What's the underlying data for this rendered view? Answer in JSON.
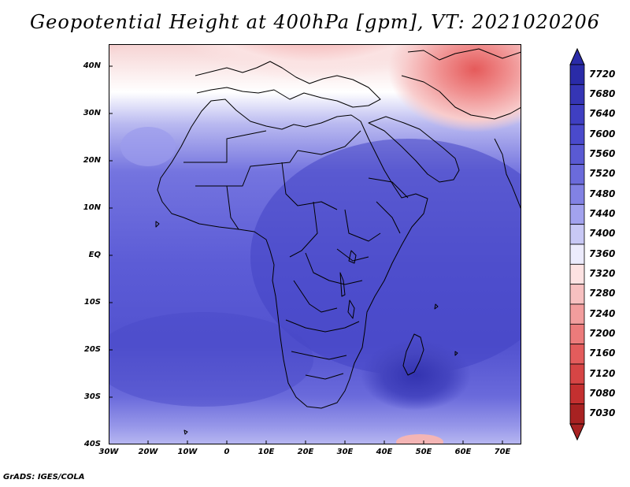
{
  "title": "Geopotential Height at 400hPa [gpm], VT: 2021020206",
  "lat_labels": [
    "40N",
    "30N",
    "20N",
    "10N",
    "EQ",
    "10S",
    "20S",
    "30S",
    "40S"
  ],
  "lon_labels": [
    "30W",
    "20W",
    "10W",
    "0",
    "10E",
    "20E",
    "30E",
    "40E",
    "50E",
    "60E",
    "70E"
  ],
  "colorbar": {
    "levels": [
      "7720",
      "7680",
      "7640",
      "7600",
      "7560",
      "7520",
      "7480",
      "7440",
      "7400",
      "7360",
      "7320",
      "7280",
      "7240",
      "7200",
      "7160",
      "7120",
      "7080",
      "7030"
    ],
    "colors": [
      "#2a2ba8",
      "#3535b5",
      "#3f3fc2",
      "#4a4acc",
      "#5a5ad3",
      "#6b6bdb",
      "#8282e4",
      "#a2a2ee",
      "#c8c8f5",
      "#ecebfc",
      "#fde2e2",
      "#f7c0c0",
      "#f29d9d",
      "#ec7b7b",
      "#e35c5c",
      "#d64545",
      "#c43030",
      "#a82222"
    ]
  },
  "footer": "GrADS: IGES/COLA"
}
